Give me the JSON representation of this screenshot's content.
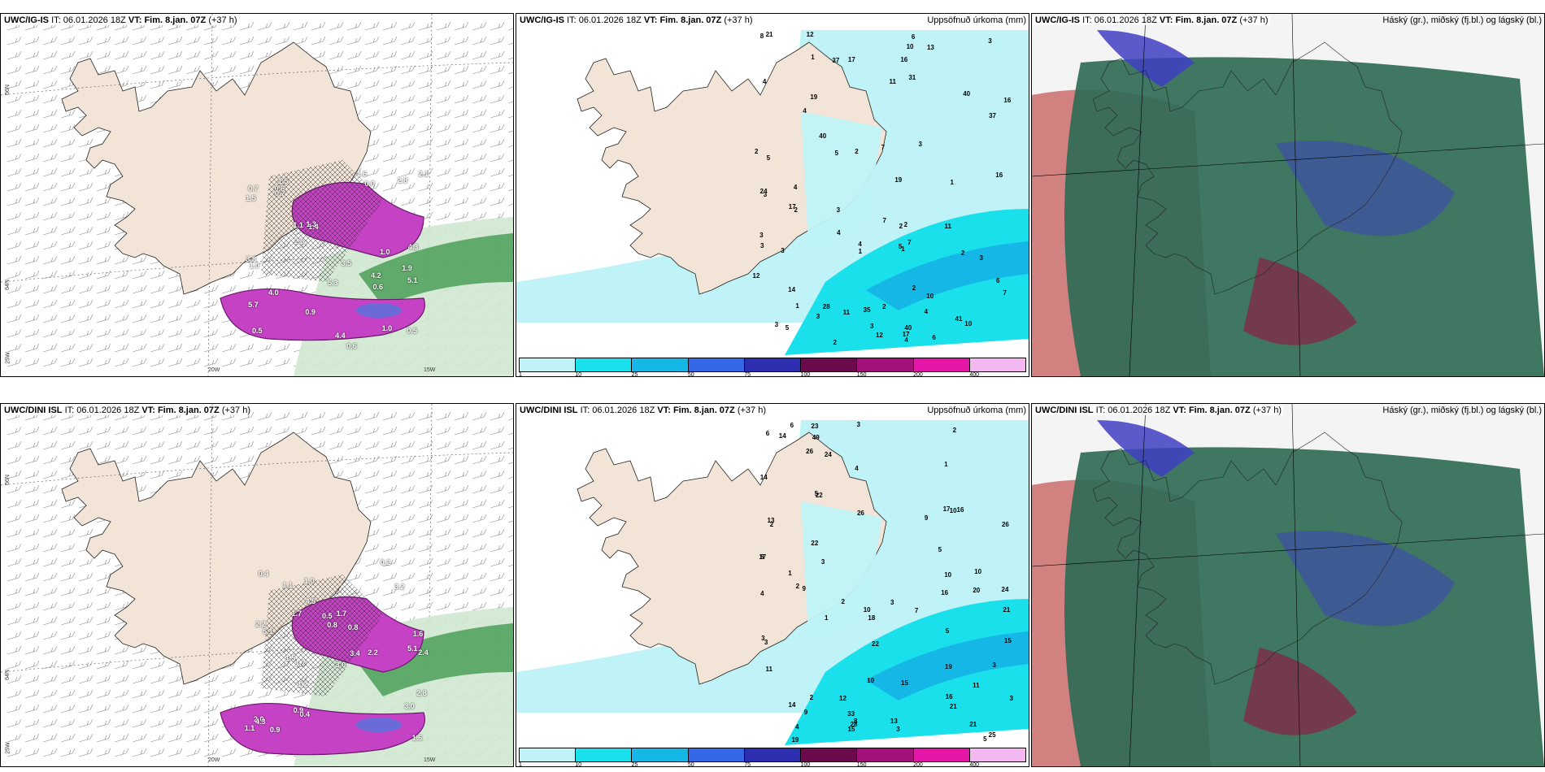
{
  "panels": [
    {
      "id": "top-left",
      "model": "UWC/IG-IS",
      "it": "06.01.2026 18Z",
      "vt_label": "VT:",
      "vt": "Fim. 8.jan. 07Z",
      "lead": "(+37 h)",
      "title_right": ""
    },
    {
      "id": "top-center",
      "model": "UWC/IG-IS",
      "it": "06.01.2026 18Z",
      "vt_label": "VT:",
      "vt": "Fim. 8.jan. 07Z",
      "lead": "(+37 h)",
      "title_right": "Uppsöfnuð úrkoma (mm)"
    },
    {
      "id": "top-right",
      "model": "UWC/IG-IS",
      "it": "06.01.2026 18Z",
      "vt_label": "VT:",
      "vt": "Fim. 8.jan. 07Z",
      "lead": "(+37 h)",
      "title_right": "Háský (gr.), miðský (fj.bl.) og lágský (bl.)"
    },
    {
      "id": "bottom-left",
      "model": "UWC/DINI ISL",
      "it": "06.01.2026 18Z",
      "vt_label": "VT:",
      "vt": "Fim. 8.jan. 07Z",
      "lead": "(+37 h)",
      "title_right": ""
    },
    {
      "id": "bottom-center",
      "model": "UWC/DINI ISL",
      "it": "06.01.2026 18Z",
      "vt_label": "VT:",
      "vt": "Fim. 8.jan. 07Z",
      "lead": "(+37 h)",
      "title_right": "Uppsöfnuð úrkoma (mm)"
    },
    {
      "id": "bottom-right",
      "model": "UWC/DINI ISL",
      "it": "06.01.2026 18Z",
      "vt_label": "VT:",
      "vt": "Fim. 8.jan. 07Z",
      "lead": "(+37 h)",
      "title_right": "Háský (gr.), miðský (fj.bl.) og lágský (bl.)"
    }
  ],
  "it_prefix": "IT:",
  "precip_colorbar": {
    "labels": [
      "1",
      "10",
      "25",
      "50",
      "75",
      "100",
      "150",
      "200",
      "400"
    ],
    "colors": [
      "#bff3f7",
      "#19e0ea",
      "#14b7e6",
      "#3568e8",
      "#2e2eb0",
      "#6b0b4d",
      "#a3117a",
      "#e316a8",
      "#f3b8f0"
    ]
  },
  "axis_labels": {
    "lat_66": "66N",
    "lat_64": "64N",
    "lon_25": "25W",
    "lon_20": "20W",
    "lon_15": "15W"
  },
  "temp_values_top": [
    "4.2",
    "1.9",
    "0.5",
    "1.5",
    "1.4",
    "1.0",
    "5.7",
    "0.0",
    "1.1",
    "0.6",
    "1.5",
    "3.8",
    "0.7",
    "0.5",
    "0.9",
    "4.3",
    "5.3",
    "3.5",
    "1.3",
    "4.0",
    "2.1",
    "2.8",
    "2.6",
    "5.1",
    "1.6",
    "0.6",
    "0.6",
    "1.0",
    "0.7",
    "1.0",
    "4.4"
  ],
  "temp_values_bottom": [
    "0.9",
    "1.0",
    "0.5",
    "0.9",
    "0.4",
    "0.8",
    "1.1",
    "1.2",
    "1.5",
    "1.1",
    "1.7",
    "3.2",
    "2.0",
    "4.5",
    "3.4",
    "2.4",
    "3.0",
    "1.6",
    "2.2",
    "5.1",
    "4.3",
    "2.8",
    "1.7",
    "3.0",
    "0.2",
    "0.4",
    "0.8",
    "5.1",
    "1.6",
    "1.7",
    "2.2"
  ],
  "precip_top_values": [
    "7",
    "5",
    "3",
    "1",
    "3",
    "2",
    "1",
    "2",
    "5",
    "7",
    "1",
    "2",
    "3",
    "4",
    "2",
    "6",
    "3",
    "3",
    "2",
    "4",
    "3",
    "2",
    "1",
    "5",
    "8",
    "6",
    "4",
    "3",
    "17",
    "7",
    "16",
    "4",
    "17",
    "4",
    "7",
    "12",
    "6",
    "12",
    "10",
    "19",
    "4",
    "11",
    "16",
    "37",
    "13",
    "40",
    "41",
    "40",
    "35",
    "37",
    "31",
    "40",
    "24",
    "21",
    "11",
    "12",
    "28",
    "19",
    "17",
    "10",
    "16",
    "10",
    "11",
    "14",
    "3",
    "3",
    "4",
    "2",
    "2",
    "3",
    "1",
    "5",
    "3",
    "2"
  ],
  "precip_bottom_values": [
    "9",
    "3",
    "3",
    "3",
    "2",
    "2",
    "5",
    "5",
    "1",
    "2",
    "3",
    "2",
    "1",
    "5",
    "8",
    "3",
    "4",
    "4",
    "6",
    "4",
    "9",
    "9",
    "7",
    "21",
    "19",
    "19",
    "10",
    "10",
    "11",
    "13",
    "14",
    "24",
    "26",
    "49",
    "33",
    "28",
    "15",
    "18",
    "16",
    "22",
    "20",
    "21",
    "23",
    "25",
    "22",
    "26",
    "26",
    "24",
    "17",
    "12",
    "10",
    "14",
    "15",
    "17",
    "10",
    "8",
    "3",
    "3",
    "1",
    "21",
    "15",
    "16",
    "16",
    "22",
    "10",
    "11",
    "14",
    "13",
    "6",
    "5",
    "3",
    "2"
  ]
}
